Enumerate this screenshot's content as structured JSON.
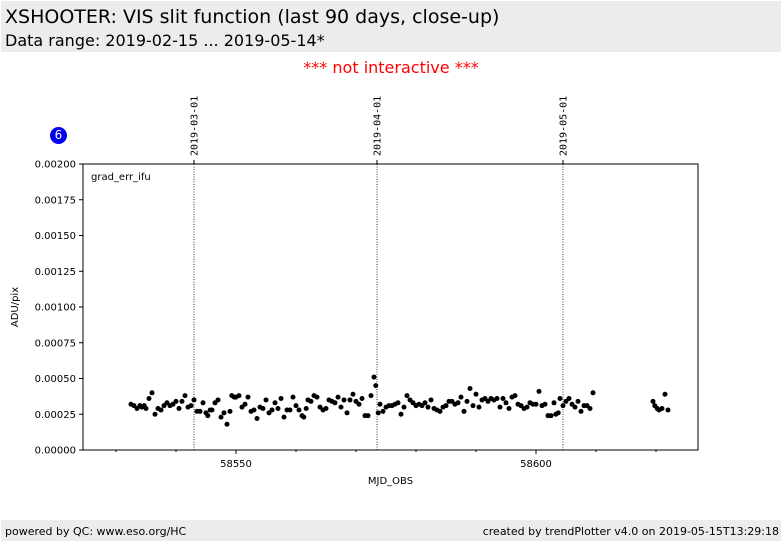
{
  "header": {
    "title": "XSHOOTER: VIS slit function (last 90 days, close-up)",
    "subtitle": "Data range: 2019-02-15 ... 2019-05-14*"
  },
  "notice": "*** not interactive ***",
  "badge": "6",
  "footer": {
    "left": "powered by QC: www.eso.org/HC",
    "right": "created by trendPlotter v4.0 on 2019-05-15T13:29:18"
  },
  "chart_data": {
    "type": "scatter",
    "panel_label": "grad_err_ifu",
    "xlabel": "MJD_OBS",
    "ylabel": "ADU/pix",
    "xlim": [
      58524.5,
      58627.0
    ],
    "ylim": [
      0,
      0.002
    ],
    "grid": false,
    "x_ticks": [
      58550,
      58600
    ],
    "x_minor_ticks": [
      58530,
      58540,
      58560,
      58570,
      58580,
      58590,
      58610,
      58620
    ],
    "y_ticks": [
      {
        "value": 0,
        "label": "0.00000"
      },
      {
        "value": 0.00025,
        "label": "0.00025"
      },
      {
        "value": 0.0005,
        "label": "0.00050"
      },
      {
        "value": 0.00075,
        "label": "0.00075"
      },
      {
        "value": 0.001,
        "label": "0.00100"
      },
      {
        "value": 0.00125,
        "label": "0.00125"
      },
      {
        "value": 0.0015,
        "label": "0.00150"
      },
      {
        "value": 0.00175,
        "label": "0.00175"
      },
      {
        "value": 0.002,
        "label": "0.00200"
      }
    ],
    "date_markers": [
      {
        "x": 58543.0,
        "label": "2019-03-01"
      },
      {
        "x": 58573.5,
        "label": "2019-04-01"
      },
      {
        "x": 58604.5,
        "label": "2019-05-01"
      }
    ],
    "points": [
      [
        58532.5,
        0.00032
      ],
      [
        58533.0,
        0.00031
      ],
      [
        58533.5,
        0.00029
      ],
      [
        58534.0,
        0.00031
      ],
      [
        58534.3,
        0.0003
      ],
      [
        58534.7,
        0.00031
      ],
      [
        58535.0,
        0.00029
      ],
      [
        58535.5,
        0.00036
      ],
      [
        58536.0,
        0.0004
      ],
      [
        58536.5,
        0.00025
      ],
      [
        58537.0,
        0.00029
      ],
      [
        58537.5,
        0.00028
      ],
      [
        58538.0,
        0.00031
      ],
      [
        58538.5,
        0.00033
      ],
      [
        58539.0,
        0.00031
      ],
      [
        58539.5,
        0.00032
      ],
      [
        58540.0,
        0.00034
      ],
      [
        58540.5,
        0.00029
      ],
      [
        58541.0,
        0.00034
      ],
      [
        58541.5,
        0.00038
      ],
      [
        58542.0,
        0.0003
      ],
      [
        58542.5,
        0.00031
      ],
      [
        58543.0,
        0.00035
      ],
      [
        58543.5,
        0.00027
      ],
      [
        58544.0,
        0.00027
      ],
      [
        58544.5,
        0.00033
      ],
      [
        58545.0,
        0.00026
      ],
      [
        58545.3,
        0.00024
      ],
      [
        58545.7,
        0.00028
      ],
      [
        58546.0,
        0.00028
      ],
      [
        58546.5,
        0.00033
      ],
      [
        58547.0,
        0.00035
      ],
      [
        58547.5,
        0.00023
      ],
      [
        58548.0,
        0.00026
      ],
      [
        58548.5,
        0.00018
      ],
      [
        58549.0,
        0.00027
      ],
      [
        58549.3,
        0.00038
      ],
      [
        58549.7,
        0.00037
      ],
      [
        58550.0,
        0.00037
      ],
      [
        58550.5,
        0.00038
      ],
      [
        58551.0,
        0.0003
      ],
      [
        58551.5,
        0.00032
      ],
      [
        58552.0,
        0.00037
      ],
      [
        58552.5,
        0.00027
      ],
      [
        58553.0,
        0.00028
      ],
      [
        58553.5,
        0.00022
      ],
      [
        58554.0,
        0.0003
      ],
      [
        58554.5,
        0.00029
      ],
      [
        58555.0,
        0.00035
      ],
      [
        58555.5,
        0.00026
      ],
      [
        58556.0,
        0.00028
      ],
      [
        58556.5,
        0.00033
      ],
      [
        58557.0,
        0.00029
      ],
      [
        58557.5,
        0.00036
      ],
      [
        58558.0,
        0.00023
      ],
      [
        58558.5,
        0.00028
      ],
      [
        58559.0,
        0.00028
      ],
      [
        58559.5,
        0.00037
      ],
      [
        58560.0,
        0.00031
      ],
      [
        58560.5,
        0.00028
      ],
      [
        58561.0,
        0.00024
      ],
      [
        58561.3,
        0.00023
      ],
      [
        58561.7,
        0.00029
      ],
      [
        58562.0,
        0.00035
      ],
      [
        58562.5,
        0.00034
      ],
      [
        58563.0,
        0.00038
      ],
      [
        58563.5,
        0.00037
      ],
      [
        58564.0,
        0.0003
      ],
      [
        58564.5,
        0.00028
      ],
      [
        58565.0,
        0.00029
      ],
      [
        58565.5,
        0.00035
      ],
      [
        58566.0,
        0.00034
      ],
      [
        58566.5,
        0.00033
      ],
      [
        58567.0,
        0.00037
      ],
      [
        58567.5,
        0.0003
      ],
      [
        58568.0,
        0.00035
      ],
      [
        58568.5,
        0.00026
      ],
      [
        58569.0,
        0.00035
      ],
      [
        58569.5,
        0.00039
      ],
      [
        58570.0,
        0.00034
      ],
      [
        58570.5,
        0.00032
      ],
      [
        58571.0,
        0.00036
      ],
      [
        58571.5,
        0.00024
      ],
      [
        58572.0,
        0.00024
      ],
      [
        58572.5,
        0.00038
      ],
      [
        58573.0,
        0.00051
      ],
      [
        58573.3,
        0.00045
      ],
      [
        58573.7,
        0.00026
      ],
      [
        58574.0,
        0.00032
      ],
      [
        58574.5,
        0.00027
      ],
      [
        58575.0,
        0.0003
      ],
      [
        58575.5,
        0.00031
      ],
      [
        58576.0,
        0.00031
      ],
      [
        58576.5,
        0.00032
      ],
      [
        58577.0,
        0.00033
      ],
      [
        58577.5,
        0.00025
      ],
      [
        58578.0,
        0.0003
      ],
      [
        58578.5,
        0.00038
      ],
      [
        58579.0,
        0.00035
      ],
      [
        58579.5,
        0.00033
      ],
      [
        58580.0,
        0.00031
      ],
      [
        58580.5,
        0.00032
      ],
      [
        58581.0,
        0.00031
      ],
      [
        58581.5,
        0.00033
      ],
      [
        58582.0,
        0.0003
      ],
      [
        58582.5,
        0.00035
      ],
      [
        58583.0,
        0.00029
      ],
      [
        58583.5,
        0.00028
      ],
      [
        58584.0,
        0.00027
      ],
      [
        58584.5,
        0.0003
      ],
      [
        58585.0,
        0.00031
      ],
      [
        58585.5,
        0.00034
      ],
      [
        58586.0,
        0.00034
      ],
      [
        58586.5,
        0.00032
      ],
      [
        58587.0,
        0.00033
      ],
      [
        58587.5,
        0.00037
      ],
      [
        58588.0,
        0.00027
      ],
      [
        58588.5,
        0.00034
      ],
      [
        58589.0,
        0.00043
      ],
      [
        58589.5,
        0.00031
      ],
      [
        58590.0,
        0.00039
      ],
      [
        58590.5,
        0.0003
      ],
      [
        58591.0,
        0.00035
      ],
      [
        58591.5,
        0.00036
      ],
      [
        58592.0,
        0.00034
      ],
      [
        58592.5,
        0.00036
      ],
      [
        58593.0,
        0.00035
      ],
      [
        58593.5,
        0.00036
      ],
      [
        58594.0,
        0.0003
      ],
      [
        58594.5,
        0.00036
      ],
      [
        58595.0,
        0.00033
      ],
      [
        58595.5,
        0.00029
      ],
      [
        58596.0,
        0.00037
      ],
      [
        58596.5,
        0.00038
      ],
      [
        58597.0,
        0.00032
      ],
      [
        58597.5,
        0.00031
      ],
      [
        58598.0,
        0.00029
      ],
      [
        58598.5,
        0.0003
      ],
      [
        58599.0,
        0.00033
      ],
      [
        58599.5,
        0.00032
      ],
      [
        58600.0,
        0.00032
      ],
      [
        58600.5,
        0.00041
      ],
      [
        58601.0,
        0.00031
      ],
      [
        58601.5,
        0.00032
      ],
      [
        58602.0,
        0.00024
      ],
      [
        58602.5,
        0.00024
      ],
      [
        58603.0,
        0.00033
      ],
      [
        58603.3,
        0.00025
      ],
      [
        58603.7,
        0.00026
      ],
      [
        58604.0,
        0.00036
      ],
      [
        58604.5,
        0.00031
      ],
      [
        58605.0,
        0.00034
      ],
      [
        58605.5,
        0.00036
      ],
      [
        58606.0,
        0.00032
      ],
      [
        58606.5,
        0.0003
      ],
      [
        58607.0,
        0.00034
      ],
      [
        58607.5,
        0.00027
      ],
      [
        58608.0,
        0.00031
      ],
      [
        58608.5,
        0.00031
      ],
      [
        58609.0,
        0.00029
      ],
      [
        58609.5,
        0.0004
      ],
      [
        58619.5,
        0.00034
      ],
      [
        58619.8,
        0.00031
      ],
      [
        58620.2,
        0.00029
      ],
      [
        58620.5,
        0.00028
      ],
      [
        58621.0,
        0.00029
      ],
      [
        58621.5,
        0.00039
      ],
      [
        58622.0,
        0.00028
      ]
    ]
  }
}
